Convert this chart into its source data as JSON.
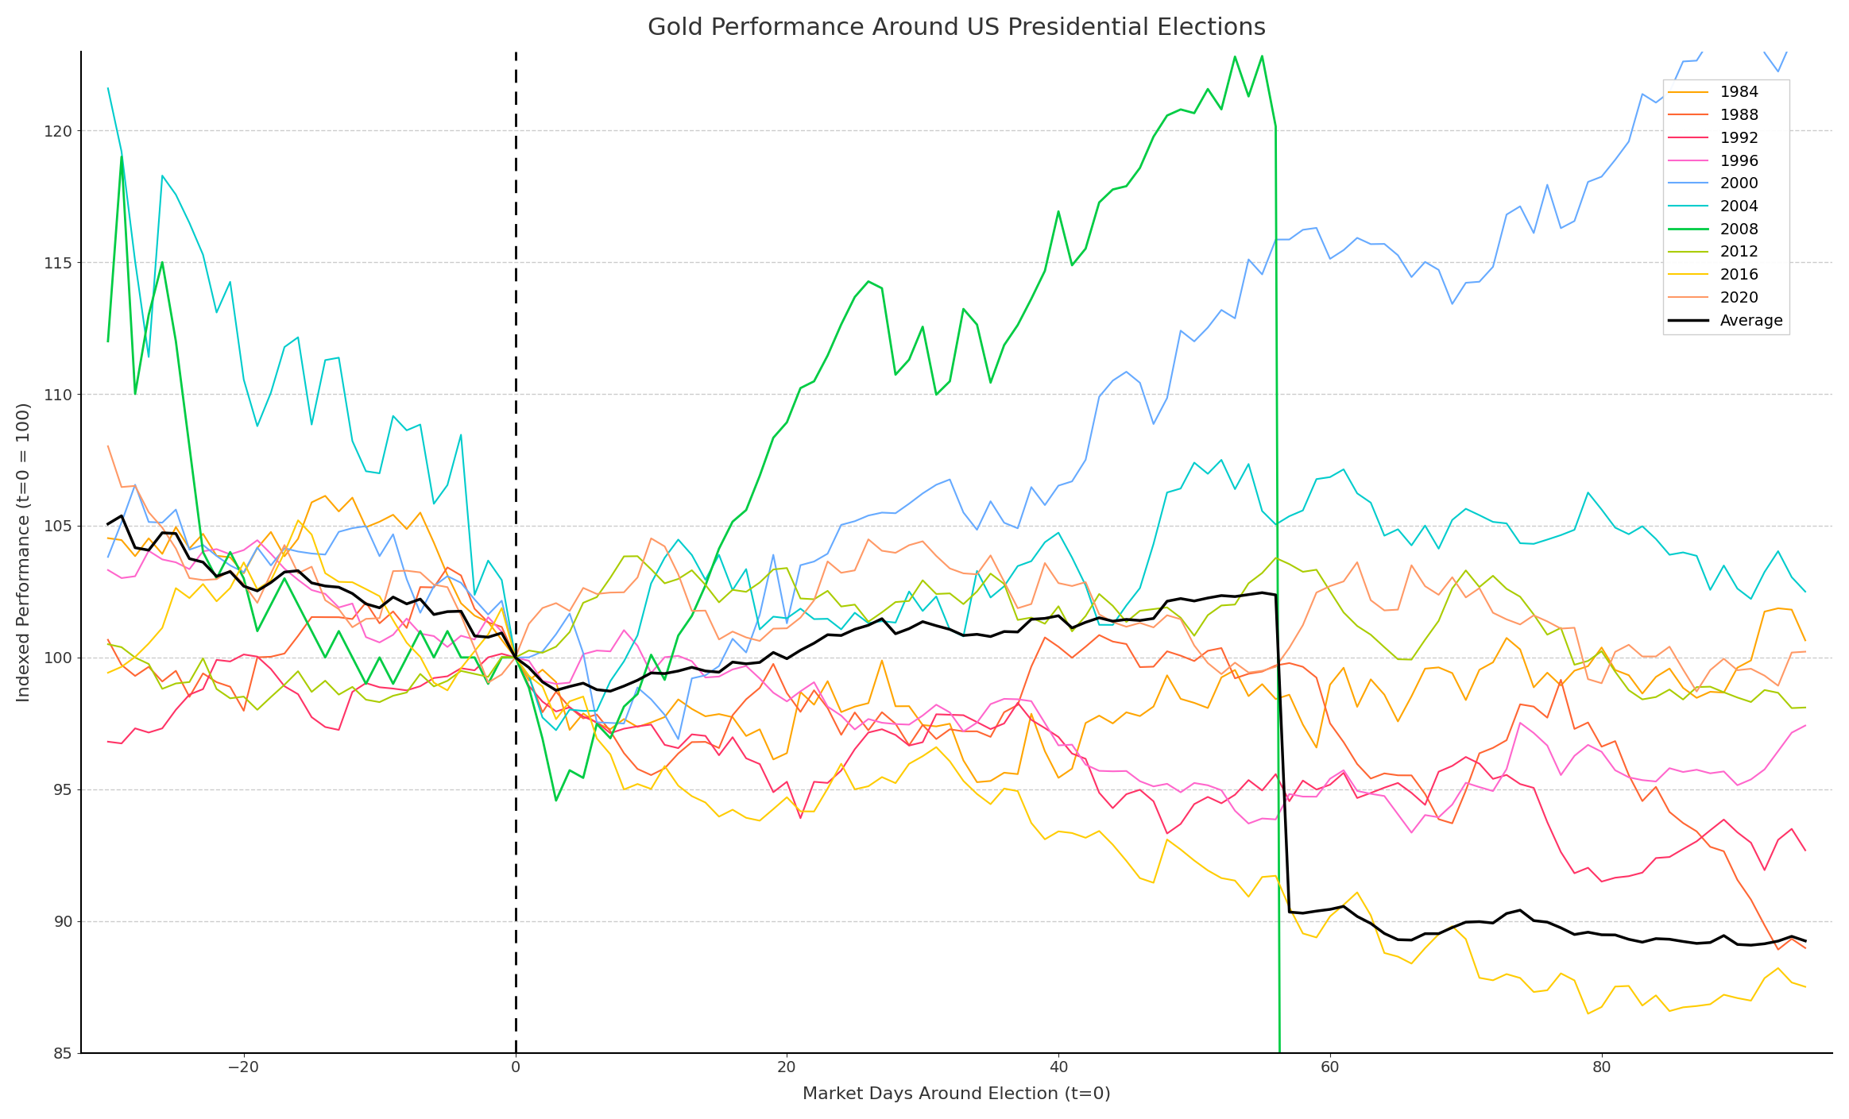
{
  "title": "Gold Performance Around US Presidential Elections",
  "xlabel": "Market Days Around Election (t=0)",
  "ylabel": "Indexed Performance (t=0 = 100)",
  "ylim": [
    85,
    123
  ],
  "xlim": [
    -32,
    97
  ],
  "xticks": [
    -20,
    0,
    20,
    40,
    60,
    80
  ],
  "yticks": [
    85,
    90,
    95,
    100,
    105,
    110,
    115,
    120
  ],
  "colors": {
    "1984": "#FFA500",
    "1988": "#FF6633",
    "1992": "#FF3366",
    "1996": "#FF66CC",
    "2000": "#66AAFF",
    "2004": "#00CCCC",
    "2008": "#00CC44",
    "2012": "#AACC00",
    "2016": "#FFCC00",
    "2020": "#FF9966",
    "Average": "#000000"
  },
  "linewidths": {
    "1984": 1.5,
    "1988": 1.5,
    "1992": 1.5,
    "1996": 1.5,
    "2000": 1.5,
    "2004": 1.5,
    "2008": 2.0,
    "2012": 1.5,
    "2016": 1.5,
    "2020": 1.5,
    "Average": 2.5
  },
  "background": "#ffffff",
  "grid_color": "#cccccc"
}
